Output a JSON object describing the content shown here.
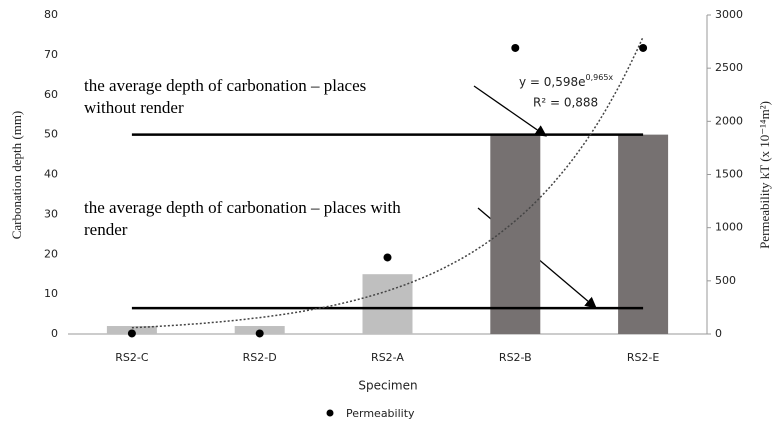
{
  "chart_data": {
    "type": "bar",
    "xlabel": "Specimen",
    "ylabel": "Carbonation depth (mm)",
    "y2label": "Permeability kT (x 10⁻¹⁴m²)",
    "categories": [
      "RS2-C",
      "RS2-D",
      "RS2-A",
      "RS2-B",
      "RS2-E"
    ],
    "values": [
      2,
      2,
      15,
      50,
      50
    ],
    "colors": [
      "#bfbfbf",
      "#bfbfbf",
      "#bfbfbf",
      "#767171",
      "#767171"
    ],
    "series": [
      {
        "name": "Permeability",
        "color": "#000000",
        "axis": "y2",
        "values": [
          5,
          5,
          720,
          2690,
          2690
        ]
      }
    ],
    "ylim": [
      0,
      80
    ],
    "yticks": [
      0,
      10,
      20,
      30,
      40,
      50,
      60,
      70,
      80
    ],
    "y2lim": [
      0,
      3000
    ],
    "y2ticks": [
      0,
      500,
      1000,
      1500,
      2000,
      2500,
      3000
    ],
    "reference_lines": [
      {
        "value": 50,
        "label": [
          "the average depth of carbonation – places",
          "without render"
        ]
      },
      {
        "value": 6.5,
        "label": [
          "the average depth of carbonation – places with",
          "render"
        ]
      }
    ],
    "trendline": {
      "a": 0.598,
      "b": 0.965,
      "label": "y = 0,598e",
      "label_exp": "0,965x",
      "r2_label": "R² = 0,888"
    },
    "legend": "bottom"
  }
}
